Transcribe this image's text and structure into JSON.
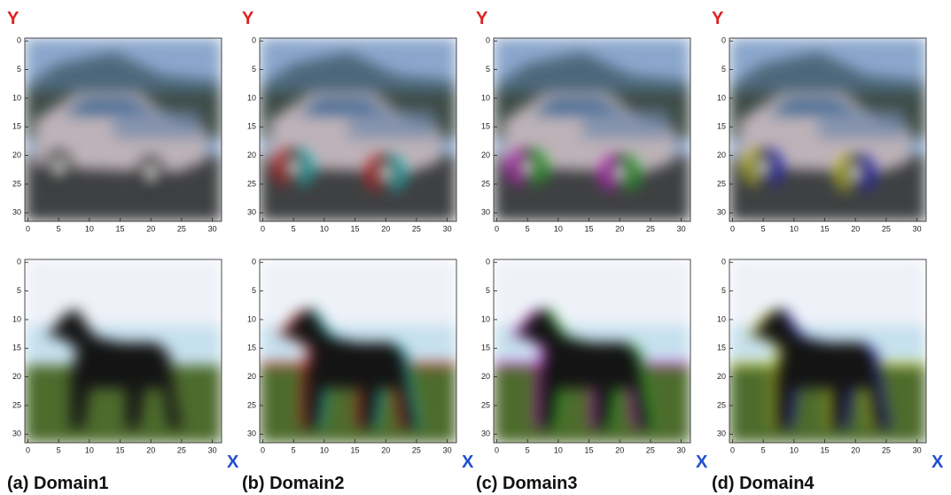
{
  "y_label": "Y",
  "x_label": "X",
  "xticks": [
    0,
    5,
    10,
    15,
    20,
    25,
    30
  ],
  "yticks": [
    0,
    5,
    10,
    15,
    20,
    25,
    30
  ],
  "panels": [
    {
      "caption": "(a) Domain1"
    },
    {
      "caption": "(b) Domain2"
    },
    {
      "caption": "(c) Domain3"
    },
    {
      "caption": "(d) Domain4"
    }
  ]
}
